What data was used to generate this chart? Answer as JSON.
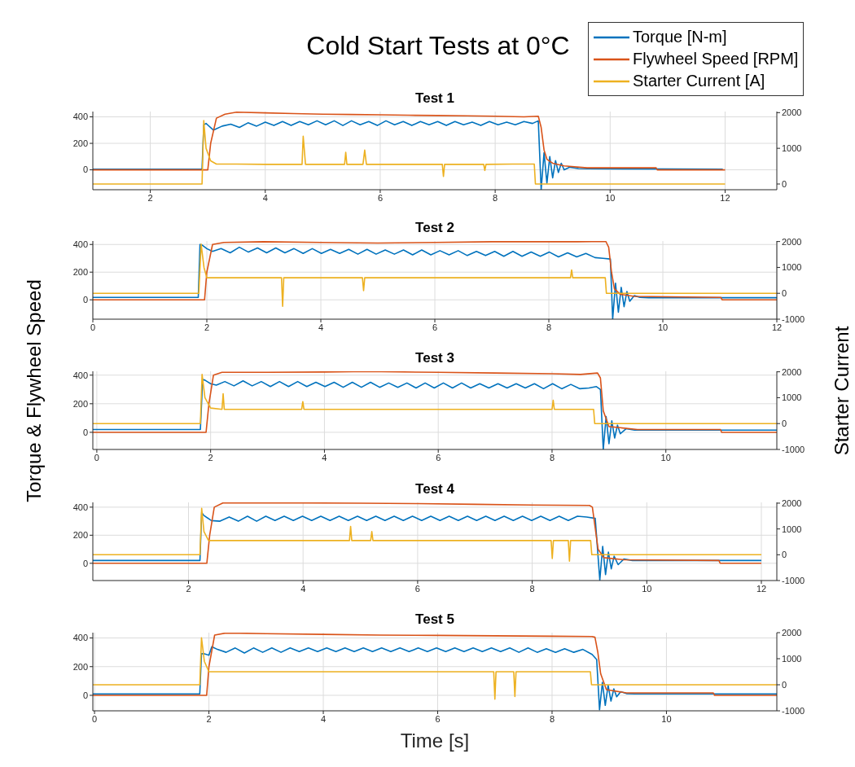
{
  "chart_data": [
    {
      "type": "line",
      "title": "Cold Start Tests at 0°C",
      "subtitle": "Test 1",
      "legend": "top right",
      "grid": true,
      "xlim": [
        1,
        12.9
      ],
      "xticks": [
        2,
        4,
        6,
        8,
        10,
        12
      ],
      "ylim": [
        -150,
        440
      ],
      "yticks": [
        0,
        200,
        400
      ],
      "y2lim": [
        -160,
        2030
      ],
      "y2ticks": [
        0,
        1000,
        2000
      ],
      "series": [
        {
          "name": "Torque [N-m]",
          "color": "#0072bd",
          "x": [
            1,
            2.9,
            2.93,
            2.97,
            3.1,
            3.25,
            3.4,
            3.55,
            3.7,
            3.85,
            4.0,
            4.15,
            4.3,
            4.45,
            4.6,
            4.75,
            4.9,
            5.05,
            5.2,
            5.35,
            5.5,
            5.65,
            5.8,
            5.95,
            6.1,
            6.25,
            6.4,
            6.55,
            6.7,
            6.85,
            7.0,
            7.15,
            7.3,
            7.45,
            7.6,
            7.75,
            7.9,
            8.05,
            8.2,
            8.35,
            8.5,
            8.65,
            8.75,
            8.8,
            8.85,
            8.9,
            8.95,
            9.0,
            9.05,
            9.1,
            9.15,
            9.2,
            9.3,
            9.45,
            9.6,
            11.96
          ],
          "values": [
            5,
            5,
            340,
            350,
            300,
            330,
            345,
            320,
            355,
            330,
            360,
            335,
            365,
            335,
            365,
            340,
            370,
            340,
            370,
            335,
            370,
            340,
            365,
            335,
            370,
            340,
            365,
            335,
            365,
            340,
            365,
            335,
            365,
            340,
            360,
            335,
            365,
            340,
            360,
            340,
            365,
            350,
            370,
            -150,
            130,
            -100,
            100,
            -60,
            70,
            -20,
            50,
            0,
            20,
            10,
            8,
            5
          ]
        },
        {
          "name": "Flywheel Speed [RPM]",
          "color": "#d95319",
          "x": [
            1,
            3.0,
            3.05,
            3.15,
            3.3,
            3.5,
            4.0,
            4.5,
            5.0,
            5.5,
            6.0,
            6.5,
            7.0,
            7.5,
            8.0,
            8.5,
            8.75,
            8.8,
            8.85,
            8.9,
            9.0,
            9.2,
            9.6,
            10.8,
            10.82,
            12
          ],
          "values": [
            0,
            0,
            200,
            390,
            420,
            435,
            430,
            425,
            420,
            418,
            415,
            412,
            410,
            408,
            405,
            400,
            405,
            320,
            150,
            80,
            50,
            30,
            15,
            15,
            0,
            0
          ]
        },
        {
          "name": "Starter Current [A]",
          "color": "#edb120",
          "axis": "y2",
          "x": [
            1,
            2.9,
            2.93,
            2.97,
            3.05,
            3.15,
            3.5,
            4.0,
            4.5,
            4.64,
            4.66,
            4.7,
            5.0,
            5.38,
            5.4,
            5.42,
            5.7,
            5.73,
            5.76,
            6.5,
            7.08,
            7.1,
            7.12,
            7.5,
            7.8,
            7.82,
            7.84,
            8.3,
            8.68,
            8.7,
            12
          ],
          "values": [
            0,
            0,
            1780,
            1000,
            650,
            560,
            560,
            550,
            550,
            550,
            1340,
            550,
            550,
            550,
            890,
            550,
            550,
            950,
            550,
            550,
            550,
            210,
            550,
            550,
            550,
            380,
            550,
            560,
            560,
            0,
            0
          ]
        }
      ]
    },
    {
      "type": "line",
      "title": "Test 2",
      "grid": true,
      "xlim": [
        0,
        12
      ],
      "xticks": [
        0,
        2,
        4,
        6,
        8,
        10,
        12
      ],
      "ylim": [
        -140,
        425
      ],
      "yticks": [
        0,
        200,
        400
      ],
      "y2lim": [
        -1000,
        2020
      ],
      "y2ticks": [
        -1000,
        0,
        1000,
        2000
      ],
      "series": [
        {
          "color": "#0072bd",
          "x": [
            0,
            1.85,
            1.88,
            1.92,
            2.0,
            2.1,
            2.25,
            2.41,
            2.57,
            2.73,
            2.89,
            3.05,
            3.21,
            3.37,
            3.53,
            3.69,
            3.85,
            4.01,
            4.17,
            4.33,
            4.49,
            4.65,
            4.81,
            4.97,
            5.13,
            5.29,
            5.45,
            5.61,
            5.77,
            5.93,
            6.09,
            6.25,
            6.41,
            6.57,
            6.73,
            6.89,
            7.05,
            7.21,
            7.37,
            7.53,
            7.69,
            7.85,
            8.01,
            8.17,
            8.33,
            8.49,
            8.65,
            8.81,
            8.95,
            9.08,
            9.12,
            9.17,
            9.22,
            9.27,
            9.32,
            9.37,
            9.42,
            9.5,
            9.6,
            9.75,
            12
          ],
          "values": [
            17,
            17,
            400,
            395,
            370,
            350,
            370,
            340,
            380,
            345,
            375,
            340,
            375,
            340,
            370,
            335,
            370,
            335,
            365,
            335,
            365,
            330,
            365,
            330,
            360,
            330,
            360,
            325,
            360,
            325,
            355,
            325,
            355,
            320,
            350,
            320,
            350,
            315,
            350,
            315,
            345,
            315,
            345,
            310,
            340,
            310,
            335,
            305,
            300,
            295,
            -140,
            120,
            -90,
            90,
            -50,
            60,
            -10,
            30,
            18,
            15,
            15
          ]
        },
        {
          "color": "#d95319",
          "x": [
            0,
            1.96,
            2.0,
            2.1,
            2.3,
            3,
            4,
            5,
            6,
            7,
            8,
            8.5,
            9.0,
            9.05,
            9.1,
            9.15,
            9.25,
            9.5,
            11.02,
            11.04,
            12
          ],
          "values": [
            0,
            0,
            200,
            400,
            415,
            420,
            415,
            410,
            415,
            420,
            420,
            420,
            422,
            380,
            200,
            80,
            40,
            25,
            17,
            0,
            0
          ]
        },
        {
          "color": "#edb120",
          "axis": "y2",
          "x": [
            0,
            1.86,
            1.9,
            1.95,
            2.0,
            2.2,
            3.0,
            3.31,
            3.33,
            3.35,
            4.0,
            4.73,
            4.75,
            4.77,
            6.0,
            7.0,
            8.38,
            8.4,
            8.42,
            8.99,
            9.01,
            12
          ],
          "values": [
            0,
            0,
            1900,
            1000,
            600,
            600,
            600,
            600,
            -500,
            600,
            600,
            600,
            100,
            600,
            600,
            600,
            600,
            900,
            600,
            600,
            0,
            0
          ]
        }
      ]
    },
    {
      "type": "line",
      "title": "Test 3",
      "ylabel": "Torque & Flywheel Speed",
      "y2label": "Starter Current",
      "grid": true,
      "xlim": [
        -0.07,
        11.95
      ],
      "xticks": [
        0,
        2,
        4,
        6,
        8,
        10
      ],
      "ylim": [
        -120,
        427
      ],
      "yticks": [
        0,
        200,
        400
      ],
      "y2lim": [
        -1000,
        2020
      ],
      "y2ticks": [
        -1000,
        0,
        1000,
        2000
      ],
      "series": [
        {
          "color": "#0072bd",
          "x": [
            -0.07,
            1.82,
            1.86,
            1.9,
            2.0,
            2.1,
            2.25,
            2.41,
            2.57,
            2.73,
            2.89,
            3.05,
            3.21,
            3.37,
            3.53,
            3.69,
            3.85,
            4.01,
            4.17,
            4.33,
            4.49,
            4.65,
            4.81,
            4.97,
            5.13,
            5.29,
            5.45,
            5.61,
            5.77,
            5.93,
            6.09,
            6.25,
            6.41,
            6.57,
            6.73,
            6.89,
            7.05,
            7.21,
            7.37,
            7.53,
            7.69,
            7.85,
            8.01,
            8.17,
            8.33,
            8.49,
            8.65,
            8.78,
            8.85,
            8.9,
            8.95,
            9.0,
            9.05,
            9.1,
            9.15,
            9.2,
            9.3,
            9.45,
            9.6,
            11.95
          ],
          "values": [
            20,
            20,
            370,
            365,
            340,
            330,
            355,
            325,
            360,
            325,
            355,
            320,
            355,
            320,
            355,
            320,
            350,
            320,
            350,
            315,
            350,
            315,
            350,
            315,
            345,
            315,
            345,
            310,
            345,
            310,
            345,
            310,
            345,
            310,
            340,
            310,
            340,
            310,
            340,
            310,
            340,
            305,
            340,
            305,
            335,
            305,
            310,
            320,
            300,
            -120,
            110,
            -80,
            80,
            -40,
            50,
            -10,
            25,
            15,
            15,
            15
          ]
        },
        {
          "color": "#d95319",
          "x": [
            -0.07,
            1.92,
            1.97,
            2.05,
            2.2,
            3,
            4,
            4.5,
            5,
            6,
            7,
            8,
            8.5,
            8.8,
            8.85,
            8.9,
            9.0,
            9.5,
            10.96,
            10.98,
            11.95
          ],
          "values": [
            0,
            0,
            200,
            400,
            420,
            420,
            422,
            424,
            424,
            420,
            415,
            410,
            405,
            415,
            380,
            150,
            40,
            20,
            20,
            0,
            0
          ]
        },
        {
          "color": "#edb120",
          "axis": "y2",
          "x": [
            -0.07,
            1.82,
            1.85,
            1.9,
            2.0,
            2.2,
            2.22,
            2.24,
            3.0,
            3.6,
            3.62,
            3.64,
            5,
            6,
            7,
            8.0,
            8.02,
            8.04,
            8.73,
            8.75,
            11.95
          ],
          "values": [
            0,
            0,
            1900,
            1000,
            600,
            550,
            1150,
            550,
            550,
            550,
            850,
            550,
            550,
            550,
            550,
            550,
            900,
            550,
            550,
            0,
            0
          ]
        }
      ]
    },
    {
      "type": "line",
      "title": "Test 4",
      "grid": true,
      "xlim": [
        0.33,
        12.27
      ],
      "xticks": [
        2,
        4,
        6,
        8,
        10,
        12
      ],
      "ylim": [
        -123,
        434
      ],
      "yticks": [
        0,
        200,
        400
      ],
      "y2lim": [
        -1000,
        2030
      ],
      "y2ticks": [
        -1000,
        0,
        1000,
        2000
      ],
      "series": [
        {
          "color": "#0072bd",
          "x": [
            0.33,
            2.2,
            2.23,
            2.27,
            2.4,
            2.55,
            2.71,
            2.87,
            3.03,
            3.19,
            3.35,
            3.51,
            3.67,
            3.83,
            3.99,
            4.15,
            4.31,
            4.47,
            4.63,
            4.79,
            4.95,
            5.11,
            5.27,
            5.43,
            5.59,
            5.75,
            5.91,
            6.07,
            6.23,
            6.39,
            6.55,
            6.71,
            6.87,
            7.03,
            7.19,
            7.35,
            7.51,
            7.67,
            7.83,
            7.99,
            8.15,
            8.31,
            8.47,
            8.63,
            8.79,
            8.95,
            9.1,
            9.18,
            9.23,
            9.28,
            9.33,
            9.38,
            9.43,
            9.5,
            9.6,
            9.75,
            9.9,
            12
          ],
          "values": [
            20,
            20,
            362,
            340,
            304,
            300,
            330,
            300,
            335,
            300,
            335,
            305,
            335,
            305,
            335,
            305,
            335,
            305,
            335,
            305,
            335,
            305,
            335,
            305,
            335,
            305,
            335,
            305,
            335,
            305,
            335,
            305,
            335,
            305,
            335,
            305,
            335,
            305,
            335,
            305,
            335,
            305,
            335,
            305,
            335,
            330,
            320,
            -120,
            120,
            -80,
            80,
            -40,
            50,
            -10,
            30,
            20,
            20,
            20
          ]
        },
        {
          "color": "#d95319",
          "x": [
            0.33,
            2.32,
            2.37,
            2.45,
            2.6,
            3,
            4,
            5,
            6,
            7,
            8,
            9.0,
            9.05,
            9.1,
            9.15,
            9.25,
            9.6,
            11.26,
            11.28,
            12
          ],
          "values": [
            0,
            0,
            200,
            400,
            430,
            430,
            430,
            428,
            425,
            420,
            415,
            412,
            400,
            250,
            100,
            40,
            25,
            20,
            0,
            0
          ]
        },
        {
          "color": "#edb120",
          "axis": "y2",
          "x": [
            0.33,
            2.2,
            2.23,
            2.27,
            2.35,
            3,
            4,
            4.81,
            4.83,
            4.85,
            5.18,
            5.2,
            5.22,
            6,
            7,
            8.33,
            8.35,
            8.37,
            8.63,
            8.65,
            8.67,
            9.02,
            9.04,
            12
          ],
          "values": [
            0,
            0,
            1800,
            900,
            550,
            550,
            550,
            550,
            1100,
            550,
            550,
            900,
            550,
            550,
            550,
            550,
            -150,
            550,
            550,
            -250,
            550,
            550,
            0,
            0
          ]
        }
      ]
    },
    {
      "type": "line",
      "title": "Test 5",
      "xlabel": "Time [s]",
      "grid": true,
      "xlim": [
        -0.03,
        11.93
      ],
      "xticks": [
        0,
        2,
        4,
        6,
        8,
        10
      ],
      "ylim": [
        -108,
        437
      ],
      "yticks": [
        0,
        200,
        400
      ],
      "y2lim": [
        -1000,
        2000
      ],
      "y2ticks": [
        -1000,
        0,
        1000,
        2000
      ],
      "series": [
        {
          "color": "#0072bd",
          "x": [
            -0.03,
            1.84,
            1.87,
            1.92,
            2.0,
            2.05,
            2.15,
            2.3,
            2.46,
            2.62,
            2.78,
            2.94,
            3.1,
            3.26,
            3.42,
            3.58,
            3.74,
            3.9,
            4.06,
            4.22,
            4.38,
            4.54,
            4.7,
            4.86,
            5.02,
            5.18,
            5.34,
            5.5,
            5.66,
            5.82,
            5.98,
            6.14,
            6.3,
            6.46,
            6.62,
            6.78,
            6.94,
            7.1,
            7.26,
            7.42,
            7.58,
            7.74,
            7.9,
            8.06,
            8.22,
            8.38,
            8.54,
            8.7,
            8.78,
            8.83,
            8.88,
            8.93,
            8.98,
            9.03,
            9.08,
            9.13,
            9.2,
            9.3,
            9.45,
            11.93
          ],
          "values": [
            10,
            10,
            290,
            290,
            280,
            339,
            320,
            300,
            330,
            295,
            330,
            300,
            330,
            300,
            330,
            305,
            330,
            305,
            330,
            305,
            330,
            305,
            330,
            305,
            330,
            305,
            330,
            305,
            330,
            305,
            330,
            305,
            330,
            305,
            330,
            305,
            330,
            305,
            330,
            300,
            330,
            300,
            325,
            300,
            325,
            300,
            320,
            285,
            250,
            -100,
            90,
            -70,
            70,
            -40,
            45,
            -10,
            25,
            12,
            10,
            10
          ]
        },
        {
          "color": "#d95319",
          "x": [
            -0.03,
            1.96,
            2.0,
            2.1,
            2.3,
            3,
            4,
            5,
            6,
            7,
            8,
            8.7,
            8.75,
            8.8,
            8.85,
            8.95,
            9.3,
            10.82,
            10.84,
            11.93
          ],
          "values": [
            0,
            0,
            200,
            420,
            435,
            430,
            425,
            420,
            418,
            415,
            412,
            410,
            405,
            300,
            150,
            40,
            17,
            17,
            0,
            0
          ]
        },
        {
          "color": "#edb120",
          "axis": "y2",
          "x": [
            -0.03,
            1.84,
            1.87,
            1.92,
            2.0,
            3,
            4,
            5,
            6,
            6.98,
            7.0,
            7.02,
            7.33,
            7.35,
            7.37,
            8.67,
            8.69,
            11.93
          ],
          "values": [
            0,
            0,
            1800,
            900,
            500,
            500,
            500,
            500,
            500,
            500,
            -550,
            500,
            500,
            -450,
            500,
            500,
            0,
            0
          ]
        }
      ]
    }
  ]
}
